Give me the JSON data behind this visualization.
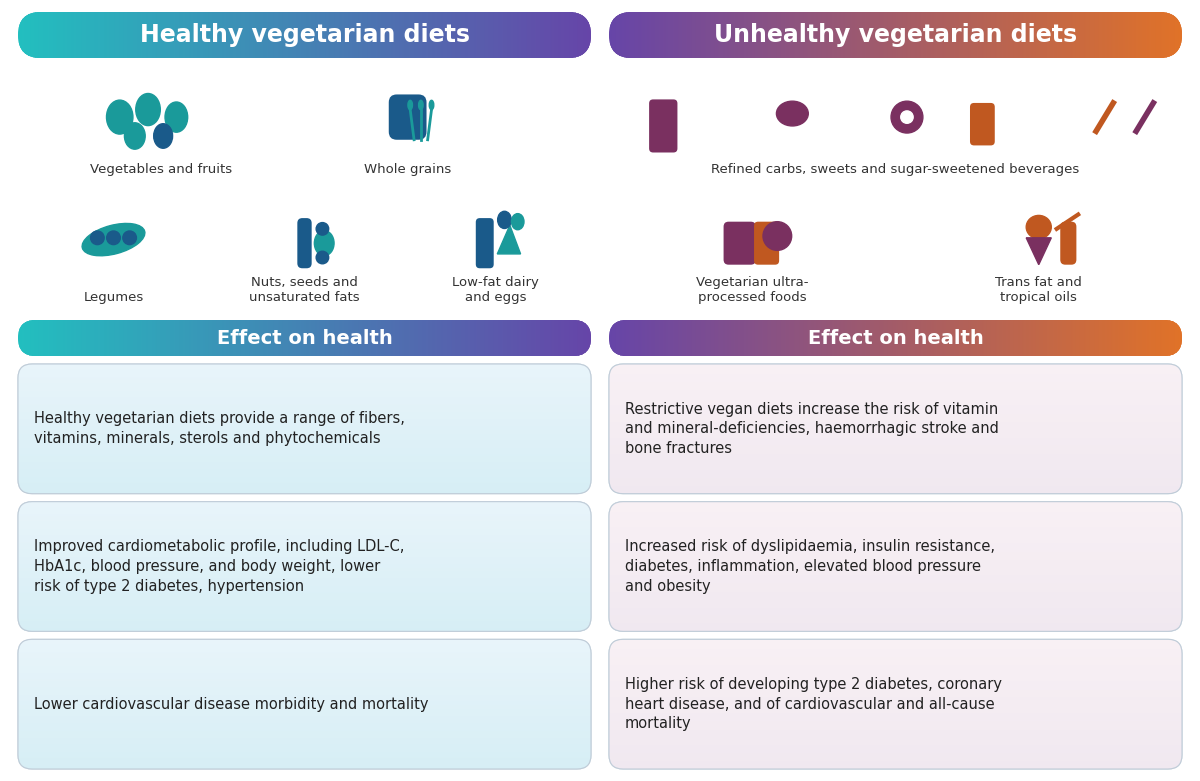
{
  "left_header_text": "Healthy vegetarian diets",
  "right_header_text": "Unhealthy vegetarian diets",
  "left_header_grad_left": "#22bfbf",
  "left_header_grad_right": "#6645a8",
  "right_header_grad_left": "#6645a8",
  "right_header_grad_right": "#e07228",
  "effect_header_text": "Effect on health",
  "left_food_row1": [
    {
      "label": "Vegetables and fruits"
    },
    {
      "label": "Whole grains"
    }
  ],
  "left_food_row2": [
    {
      "label": "Legumes"
    },
    {
      "label": "Nuts, seeds and\nunsaturated fats"
    },
    {
      "label": "Low-fat dairy\nand eggs"
    }
  ],
  "right_food_row1": [
    {
      "label": "Refined carbs, sweets and sugar-sweetened beverages"
    }
  ],
  "right_food_row2": [
    {
      "label": "Vegetarian ultra-\nprocessed foods"
    },
    {
      "label": "Trans fat and\ntropical oils"
    }
  ],
  "left_effects": [
    "Healthy vegetarian diets provide a range of fibers,\nvitamins, minerals, sterols and phytochemicals",
    "Improved cardiometabolic profile, including LDL-C,\nHbA1c, blood pressure, and body weight, lower\nrisk of type 2 diabetes, hypertension",
    "Lower cardiovascular disease morbidity and mortality"
  ],
  "right_effects": [
    "Restrictive vegan diets increase the risk of vitamin\nand mineral-deficiencies, haemorrhagic stroke and\nbone fractures",
    "Increased risk of dyslipidaemia, insulin resistance,\ndiabetes, inflammation, elevated blood pressure\nand obesity",
    "Higher risk of developing type 2 diabetes, coronary\nheart disease, and of cardiovascular and all-cause\nmortality"
  ],
  "left_box_bg_top": "#d6eef5",
  "left_box_bg_bottom": "#e8f4fa",
  "right_box_bg_top": "#f0e8f0",
  "right_box_bg_bottom": "#f8f0f4",
  "left_icon_color1": "#1a9a9a",
  "left_icon_color2": "#1a5a8a",
  "right_icon_color1": "#7a3060",
  "right_icon_color2": "#c05820",
  "food_text_color": "#333333",
  "effect_text_color": "#222222",
  "header_fontsize": 17,
  "effect_header_fontsize": 14,
  "food_label_fontsize": 9.5,
  "effect_text_fontsize": 10.5
}
